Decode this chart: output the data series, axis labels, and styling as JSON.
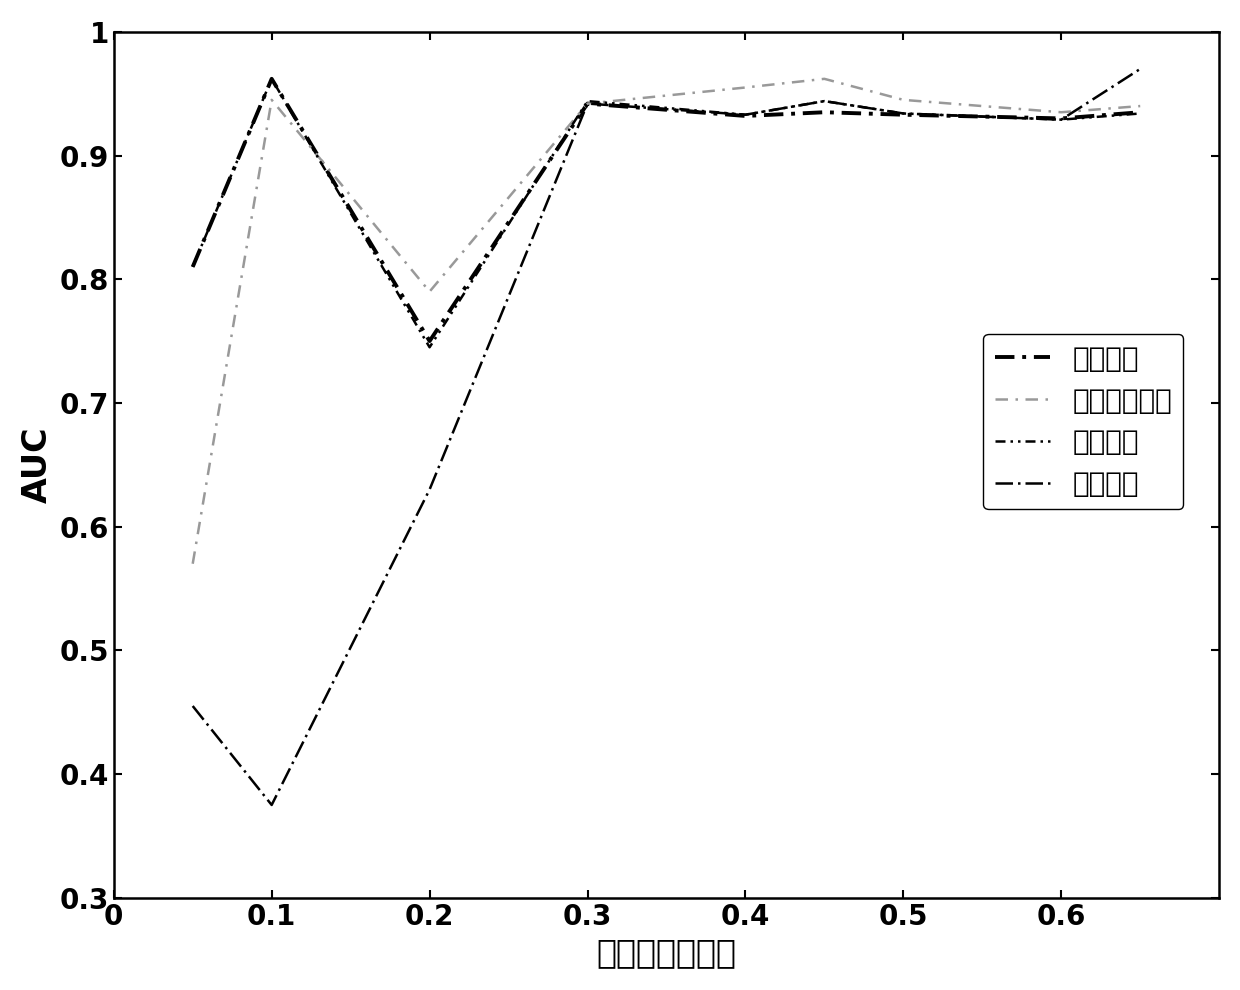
{
  "series": [
    {
      "label": "欧式距离",
      "x": [
        0.05,
        0.1,
        0.2,
        0.3,
        0.4,
        0.45,
        0.5,
        0.6,
        0.65
      ],
      "y": [
        0.81,
        0.962,
        0.75,
        0.942,
        0.932,
        0.935,
        0.933,
        0.93,
        0.935
      ]
    },
    {
      "label": "相关系数距离",
      "x": [
        0.05,
        0.1,
        0.2,
        0.3,
        0.4,
        0.45,
        0.5,
        0.6,
        0.65
      ],
      "y": [
        0.57,
        0.945,
        0.79,
        0.942,
        0.955,
        0.962,
        0.945,
        0.935,
        0.94
      ]
    },
    {
      "label": "余弦距离",
      "x": [
        0.05,
        0.1,
        0.2,
        0.3,
        0.4,
        0.45,
        0.5,
        0.6,
        0.65
      ],
      "y": [
        0.81,
        0.962,
        0.745,
        0.944,
        0.933,
        0.944,
        0.934,
        0.929,
        0.934
      ]
    },
    {
      "label": "马氏距离",
      "x": [
        0.05,
        0.1,
        0.2,
        0.3,
        0.4,
        0.45,
        0.5,
        0.6,
        0.65
      ],
      "y": [
        0.455,
        0.375,
        0.63,
        0.942,
        0.933,
        0.944,
        0.934,
        0.929,
        0.97
      ]
    }
  ],
  "xlabel": "故障后采样时间",
  "ylabel": "AUC",
  "xlim": [
    0,
    0.7
  ],
  "ylim": [
    0.3,
    1.0
  ],
  "xticks": [
    0,
    0.1,
    0.2,
    0.3,
    0.4,
    0.5,
    0.6
  ],
  "yticks": [
    0.3,
    0.4,
    0.5,
    0.6,
    0.7,
    0.8,
    0.9,
    1.0
  ],
  "background_color": "#ffffff",
  "fontsize_ticks": 20,
  "fontsize_labels": 24,
  "fontsize_legend": 20
}
